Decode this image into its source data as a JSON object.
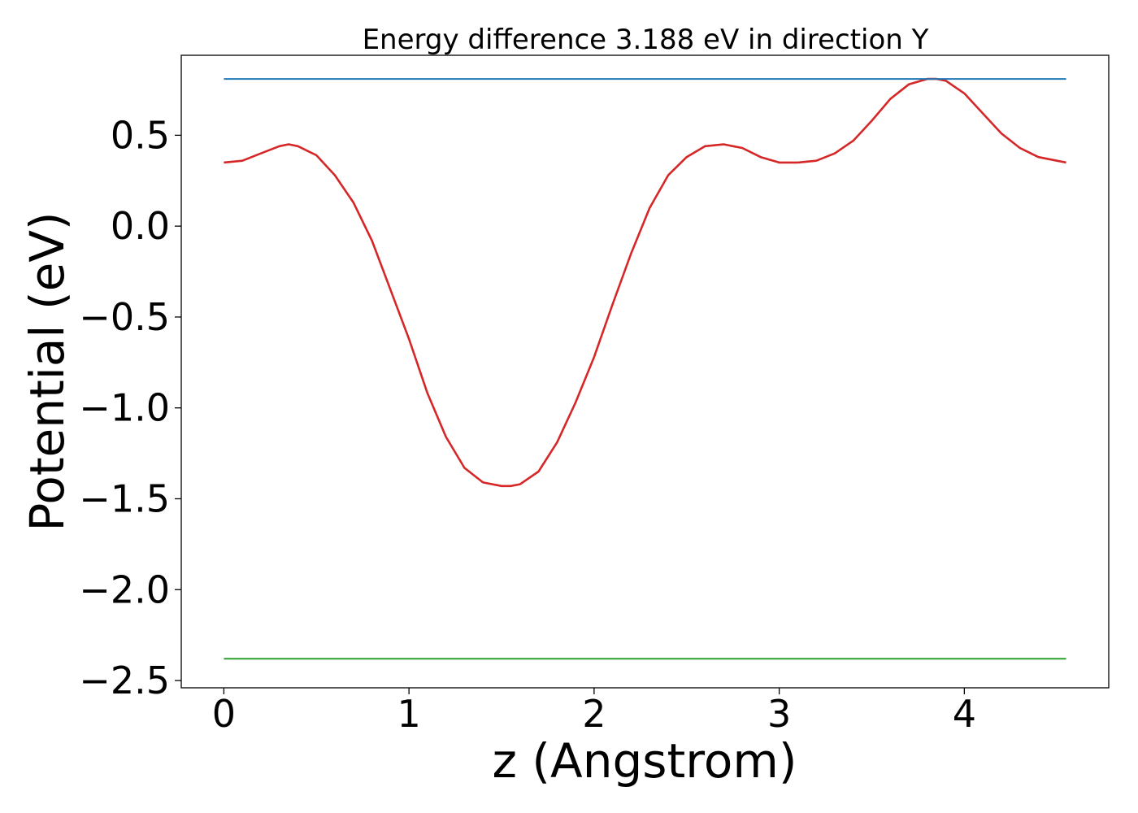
{
  "chart_data": {
    "type": "line",
    "title": "Energy difference 3.188 eV in direction Y",
    "xlabel": "z (Angstrom)",
    "ylabel": "Potential (eV)",
    "xlim": [
      -0.23,
      4.78
    ],
    "ylim": [
      -2.54,
      0.94
    ],
    "xticks": [
      0,
      1,
      2,
      3,
      4
    ],
    "yticks": [
      0.5,
      0.0,
      -0.5,
      -1.0,
      -1.5,
      -2.0,
      -2.5
    ],
    "xtick_labels": [
      "0",
      "1",
      "2",
      "3",
      "4"
    ],
    "ytick_labels": [
      "0.5",
      "0.0",
      "−0.5",
      "−1.0",
      "−1.5",
      "−2.0",
      "−2.5"
    ],
    "grid": false,
    "series": [
      {
        "color": "#d62728",
        "x": [
          0.0,
          0.1,
          0.2,
          0.3,
          0.35,
          0.4,
          0.5,
          0.6,
          0.7,
          0.8,
          0.9,
          1.0,
          1.1,
          1.2,
          1.3,
          1.4,
          1.5,
          1.55,
          1.6,
          1.7,
          1.8,
          1.9,
          2.0,
          2.1,
          2.2,
          2.3,
          2.4,
          2.5,
          2.6,
          2.7,
          2.75,
          2.8,
          2.9,
          3.0,
          3.05,
          3.1,
          3.2,
          3.3,
          3.4,
          3.5,
          3.6,
          3.7,
          3.8,
          3.85,
          3.9,
          4.0,
          4.1,
          4.2,
          4.3,
          4.4,
          4.5,
          4.55
        ],
        "y": [
          0.35,
          0.36,
          0.4,
          0.44,
          0.45,
          0.44,
          0.39,
          0.28,
          0.13,
          -0.08,
          -0.35,
          -0.62,
          -0.92,
          -1.16,
          -1.33,
          -1.41,
          -1.43,
          -1.43,
          -1.42,
          -1.35,
          -1.19,
          -0.97,
          -0.72,
          -0.43,
          -0.15,
          0.1,
          0.28,
          0.38,
          0.44,
          0.45,
          0.44,
          0.43,
          0.38,
          0.35,
          0.35,
          0.35,
          0.36,
          0.4,
          0.47,
          0.58,
          0.7,
          0.78,
          0.81,
          0.81,
          0.8,
          0.73,
          0.62,
          0.51,
          0.43,
          0.38,
          0.36,
          0.35
        ]
      },
      {
        "color": "#1f77b4",
        "x": [
          0.0,
          4.55
        ],
        "y": [
          0.81,
          0.81
        ]
      },
      {
        "color": "#2ca02c",
        "x": [
          0.0,
          4.55
        ],
        "y": [
          -2.38,
          -2.38
        ]
      }
    ]
  }
}
